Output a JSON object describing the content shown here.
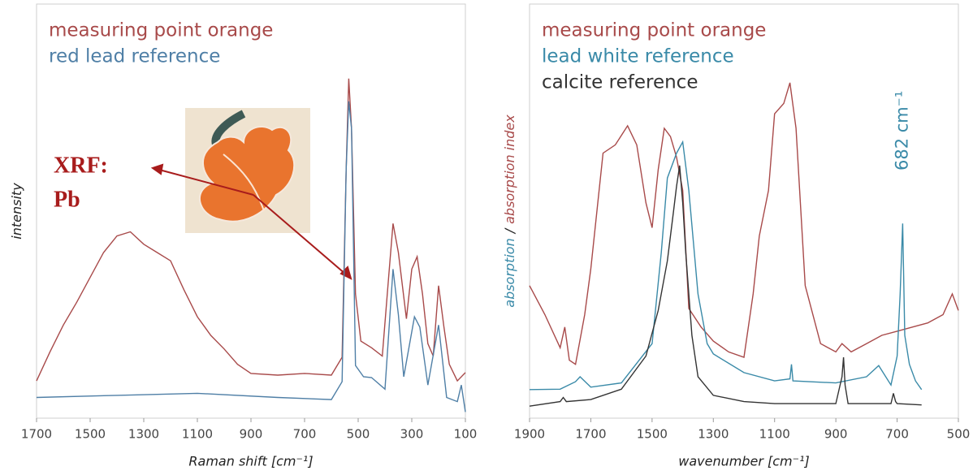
{
  "chart_data": [
    {
      "type": "line",
      "xlabel": "Raman shift [cm⁻¹]",
      "ylabel": [
        "intensity"
      ],
      "xlim": [
        1700,
        100
      ],
      "xticks": [
        1700,
        1500,
        1300,
        1100,
        900,
        700,
        500,
        300,
        100
      ],
      "ylim": [
        0,
        100
      ],
      "annotation": [
        "XRF:",
        "Pb"
      ],
      "series": [
        {
          "name": "measuring point orange",
          "color": "#a84a4a",
          "x": [
            1700,
            1650,
            1600,
            1550,
            1500,
            1450,
            1400,
            1350,
            1300,
            1250,
            1200,
            1150,
            1100,
            1050,
            1000,
            950,
            900,
            800,
            700,
            600,
            560,
            545,
            535,
            525,
            510,
            490,
            450,
            410,
            385,
            370,
            350,
            320,
            300,
            280,
            260,
            240,
            220,
            200,
            180,
            160,
            130,
            100
          ],
          "values": [
            9,
            16,
            22.5,
            28,
            34,
            40,
            44,
            45,
            42,
            40,
            38,
            31,
            24.5,
            20,
            16.7,
            13,
            10.8,
            10.4,
            10.8,
            10.4,
            14.7,
            60,
            82,
            70,
            30,
            18.6,
            17,
            15,
            35,
            47,
            40,
            24,
            36,
            39,
            30,
            18,
            15,
            32,
            22,
            13,
            9,
            11
          ]
        },
        {
          "name": "red lead reference",
          "color": "#4f7fa6",
          "x": [
            1700,
            1400,
            1100,
            800,
            600,
            560,
            545,
            535,
            525,
            510,
            480,
            450,
            400,
            370,
            350,
            330,
            290,
            270,
            240,
            200,
            170,
            130,
            115,
            100
          ],
          "values": [
            5,
            5.5,
            6,
            5,
            4.5,
            8.8,
            60,
            76.5,
            70,
            12.7,
            10,
            9.8,
            7,
            36,
            25,
            10,
            24.5,
            22,
            8,
            22.5,
            5,
            4,
            8,
            1.5
          ]
        }
      ]
    },
    {
      "type": "line",
      "xlabel": "wavenumber [cm⁻¹]",
      "ylabel": [
        "absorption",
        "/",
        "absorption index"
      ],
      "xlim": [
        1900,
        500
      ],
      "xticks": [
        1900,
        1700,
        1500,
        1300,
        1100,
        900,
        700,
        500
      ],
      "ylim": [
        0,
        100
      ],
      "annotation": [
        "682 cm⁻¹"
      ],
      "series": [
        {
          "name": "measuring point orange",
          "color": "#a84a4a",
          "x": [
            1900,
            1850,
            1800,
            1785,
            1770,
            1750,
            1720,
            1700,
            1660,
            1620,
            1580,
            1550,
            1520,
            1500,
            1480,
            1460,
            1440,
            1420,
            1400,
            1380,
            1340,
            1300,
            1250,
            1200,
            1170,
            1150,
            1120,
            1100,
            1070,
            1050,
            1030,
            1000,
            950,
            900,
            880,
            850,
            800,
            750,
            700,
            650,
            600,
            550,
            520,
            500
          ],
          "values": [
            32,
            25,
            17,
            22,
            14,
            13,
            25,
            36,
            64,
            66,
            70.6,
            66,
            52,
            46,
            60,
            70,
            68,
            63,
            55,
            26.5,
            22,
            18.6,
            16,
            14.7,
            30,
            44,
            55,
            73.5,
            76,
            81,
            70,
            32,
            18,
            16,
            18,
            16,
            18,
            20,
            21,
            22,
            23,
            25,
            30,
            26
          ]
        },
        {
          "name": "lead white reference",
          "color": "#3a8aa8",
          "x": [
            1900,
            1800,
            1750,
            1735,
            1700,
            1600,
            1500,
            1470,
            1450,
            1420,
            1400,
            1380,
            1350,
            1320,
            1300,
            1200,
            1100,
            1050,
            1045,
            1040,
            900,
            800,
            760,
            720,
            700,
            690,
            682,
            675,
            660,
            640,
            620
          ],
          "values": [
            6.9,
            7,
            8.8,
            10,
            7.5,
            8.5,
            18,
            40,
            58,
            64,
            66.7,
            55,
            30,
            18,
            15.5,
            11,
            9,
            9.5,
            13,
            9,
            8.5,
            10,
            12.7,
            8,
            15,
            30,
            47,
            20,
            13,
            9,
            6.9
          ]
        },
        {
          "name": "calcite reference",
          "color": "#333333",
          "x": [
            1900,
            1800,
            1790,
            1780,
            1700,
            1600,
            1520,
            1480,
            1450,
            1430,
            1420,
            1410,
            1400,
            1390,
            1370,
            1350,
            1300,
            1200,
            1100,
            900,
            880,
            875,
            870,
            860,
            720,
            712,
            705,
            700,
            620
          ],
          "values": [
            2.9,
            4,
            5,
            4,
            4.5,
            7,
            15,
            26,
            38,
            50,
            56,
            61,
            52,
            40,
            20,
            10,
            5.5,
            4,
            3.5,
            3.5,
            10,
            14.7,
            8,
            3.5,
            3.5,
            6,
            4,
            3.5,
            3.2
          ]
        }
      ]
    }
  ]
}
